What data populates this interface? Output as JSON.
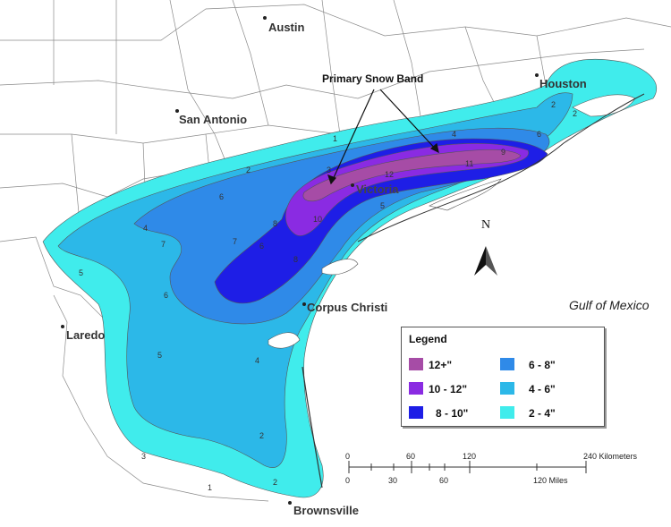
{
  "cities": {
    "austin": "Austin",
    "houston": "Houston",
    "san_antonio": "San Antonio",
    "victoria": "Victoria",
    "corpus_christi": "Corpus Christi",
    "laredo": "Laredo",
    "brownsville": "Brownsville"
  },
  "water_label": "Gulf of Mexico",
  "annotation": "Primary Snow Band",
  "north_label": "N",
  "legend": {
    "title": "Legend",
    "items": [
      {
        "label": "12+\"",
        "color": "#a64ca6"
      },
      {
        "label": "10 - 12\"",
        "color": "#8a2be2"
      },
      {
        "label": "8 - 10\"",
        "color": "#1e1ee6"
      },
      {
        "label": "6 - 8\"",
        "color": "#2f8ae8"
      },
      {
        "label": "4 - 6\"",
        "color": "#2cb8e8"
      },
      {
        "label": "2 - 4\"",
        "color": "#40ecec"
      }
    ]
  },
  "scale": {
    "km_ticks": [
      "0",
      "60",
      "120",
      "240 Kilometers"
    ],
    "mile_ticks": [
      "0",
      "30",
      "60",
      "120 Miles"
    ]
  },
  "contour_labels": [
    "1",
    "2",
    "3",
    "4",
    "5",
    "6",
    "7",
    "8",
    "9",
    "10",
    "11",
    "12"
  ]
}
